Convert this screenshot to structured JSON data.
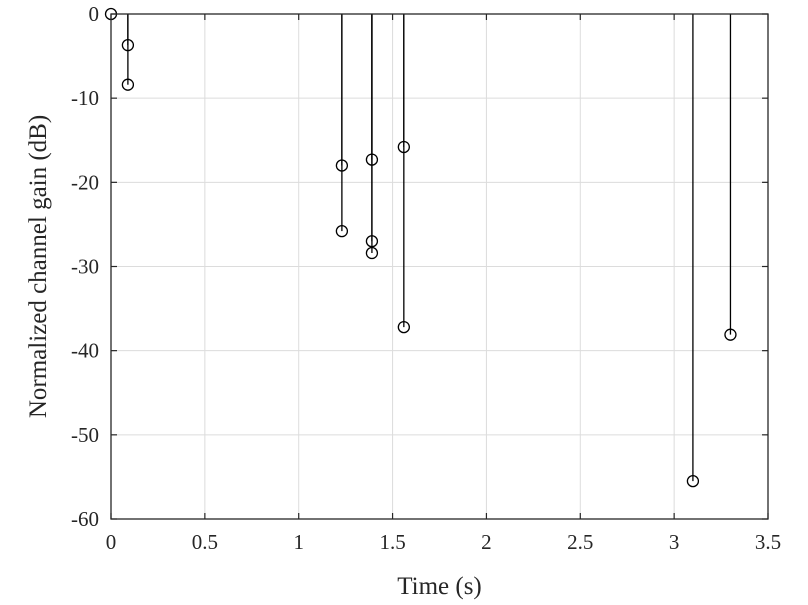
{
  "chart_data": {
    "type": "stem",
    "xlabel": "Time (s)",
    "ylabel": "Normalized channel gain (dB)",
    "xlim": [
      0,
      3.5
    ],
    "ylim": [
      -60,
      0
    ],
    "x_ticks": [
      0,
      0.5,
      1,
      1.5,
      2,
      2.5,
      3,
      3.5
    ],
    "x_tick_labels": [
      "0",
      "0.5",
      "1",
      "1.5",
      "2",
      "2.5",
      "3",
      "3.5"
    ],
    "y_ticks": [
      0,
      -10,
      -20,
      -30,
      -40,
      -50,
      -60
    ],
    "y_tick_labels": [
      "0",
      "-10",
      "-20",
      "-30",
      "-40",
      "-50",
      "-60"
    ],
    "grid": true,
    "baseline": 0,
    "marker": "circle",
    "color": "#000000",
    "points": [
      {
        "x": 0.0,
        "y": 0.0
      },
      {
        "x": 0.09,
        "y": -3.7
      },
      {
        "x": 0.09,
        "y": -8.4
      },
      {
        "x": 1.23,
        "y": -18.0
      },
      {
        "x": 1.23,
        "y": -25.8
      },
      {
        "x": 1.39,
        "y": -17.3
      },
      {
        "x": 1.39,
        "y": -27.0
      },
      {
        "x": 1.39,
        "y": -28.4
      },
      {
        "x": 1.56,
        "y": -15.8
      },
      {
        "x": 1.56,
        "y": -37.2
      },
      {
        "x": 3.1,
        "y": -55.5
      },
      {
        "x": 3.3,
        "y": -38.1
      }
    ]
  }
}
